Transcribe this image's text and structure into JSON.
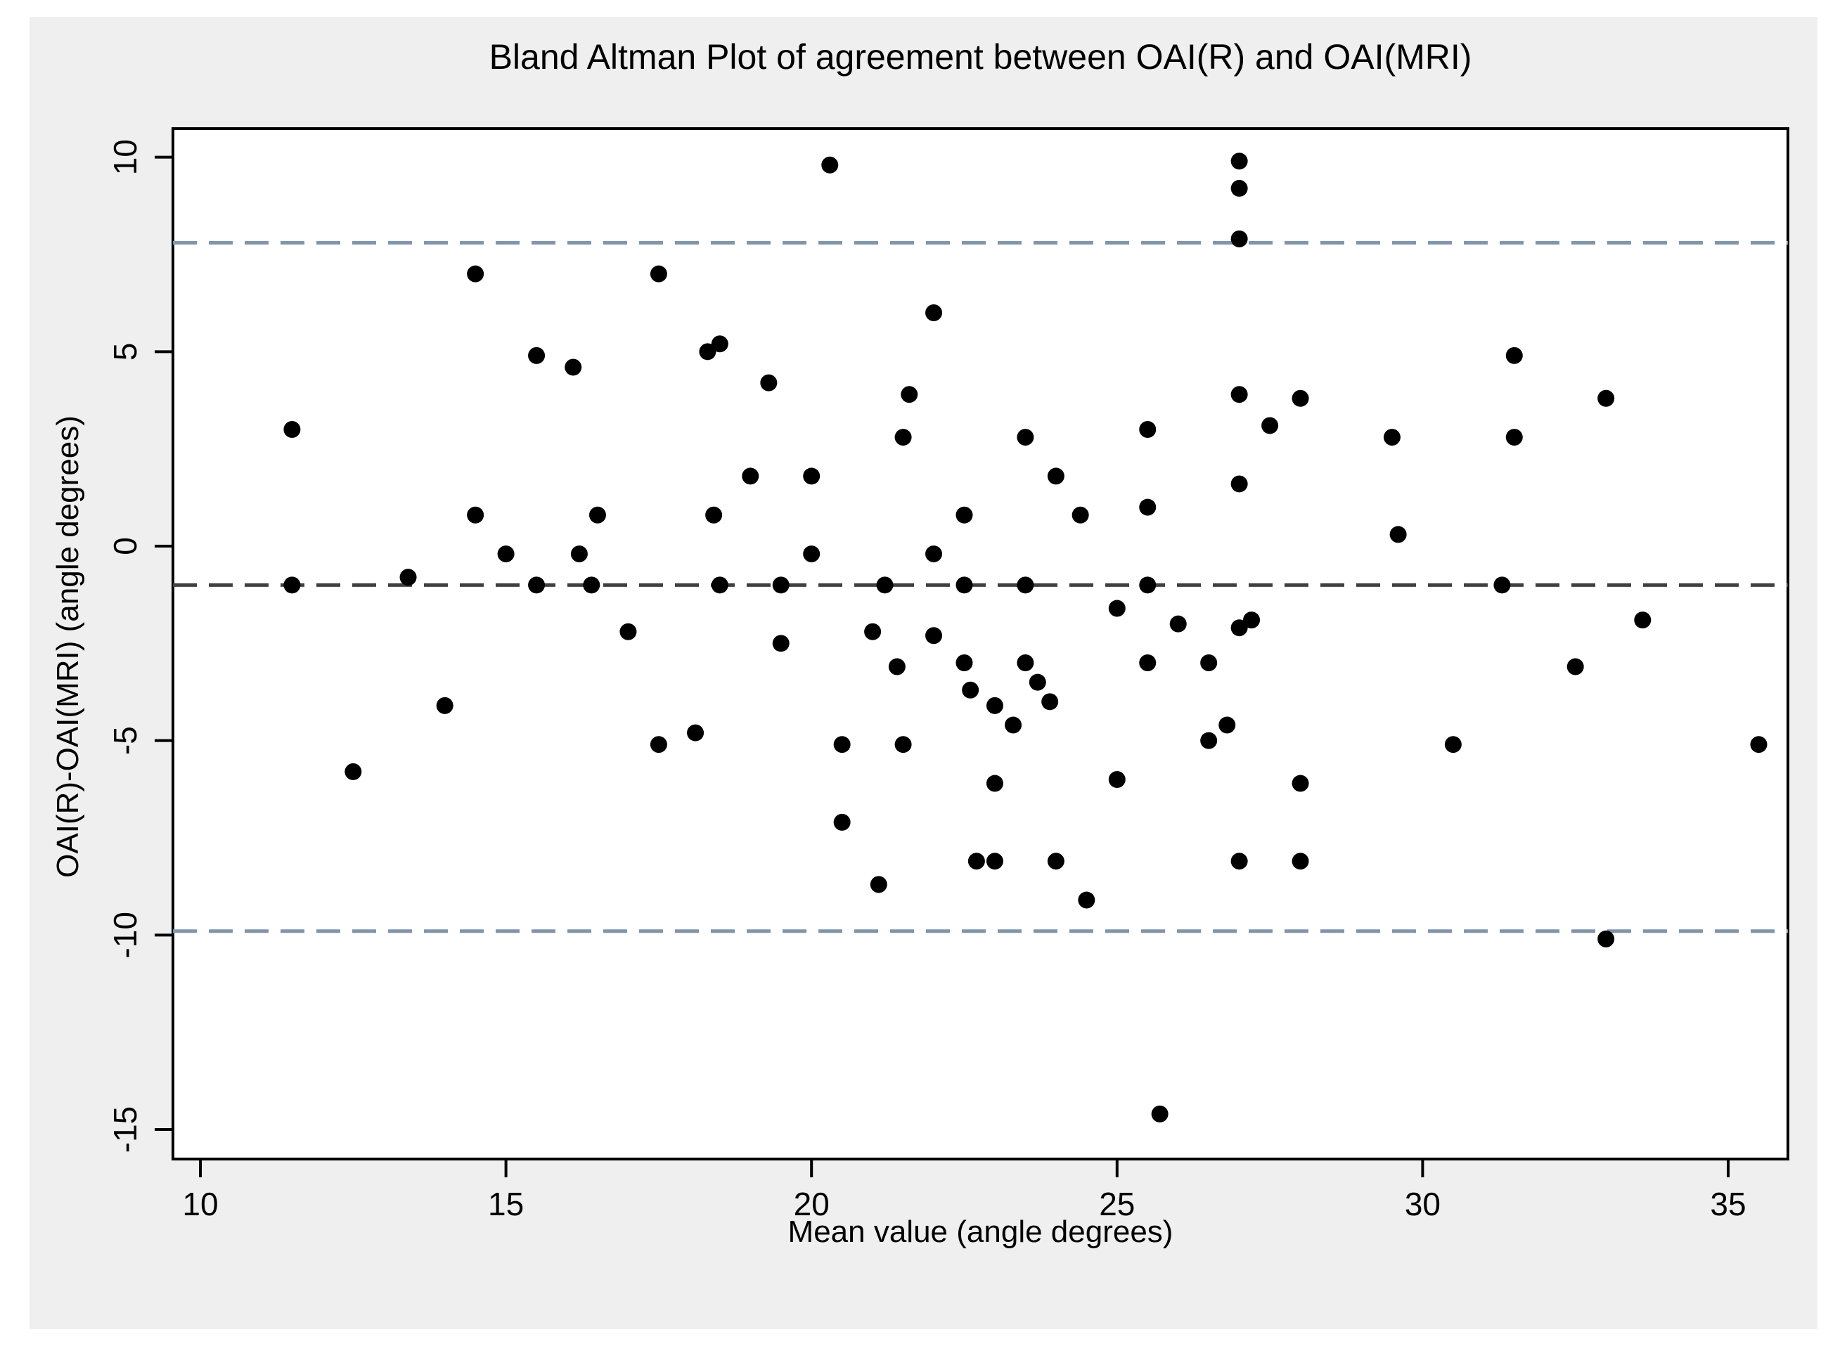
{
  "figure": {
    "title": "Bland Altman Plot of agreement between OAI(R) and OAI(MRI)"
  },
  "chart_data": {
    "type": "scatter",
    "title": "Bland Altman Plot of agreement between OAI(R) and OAI(MRI)",
    "xlabel": "Mean value (angle degrees)",
    "ylabel": "OAI(R)-OAI(MRI) (angle degrees)",
    "xlim": [
      9.5,
      36.0
    ],
    "ylim": [
      -15.8,
      10.7
    ],
    "x_ticks": [
      10,
      15,
      20,
      25,
      30,
      35
    ],
    "y_ticks": [
      10,
      5,
      0,
      -5,
      -10,
      -15
    ],
    "grid": false,
    "legend": "none",
    "point_color": "#000000",
    "figure_background": "#efefef",
    "plot_background": "#ffffff",
    "frame_color": "#000000",
    "reference_lines": [
      {
        "name": "mean_difference",
        "value": -1.0,
        "color": "#404040",
        "style": "dashed"
      },
      {
        "name": "upper_limit_of_agreement",
        "value": 7.8,
        "color": "#8095aa",
        "style": "dashed"
      },
      {
        "name": "lower_limit_of_agreement",
        "value": -9.9,
        "color": "#8095aa",
        "style": "dashed"
      }
    ],
    "points": [
      [
        14.5,
        7.0
      ],
      [
        17.5,
        7.0
      ],
      [
        15.5,
        4.9
      ],
      [
        16.1,
        4.6
      ],
      [
        11.5,
        3.0
      ],
      [
        14.5,
        0.8
      ],
      [
        16.5,
        0.8
      ],
      [
        15.0,
        -0.2
      ],
      [
        16.2,
        -0.2
      ],
      [
        11.5,
        -1.0
      ],
      [
        13.4,
        -0.8
      ],
      [
        15.5,
        -1.0
      ],
      [
        16.4,
        -1.0
      ],
      [
        17.0,
        -2.2
      ],
      [
        18.3,
        5.0
      ],
      [
        18.5,
        5.2
      ],
      [
        19.3,
        4.2
      ],
      [
        20.3,
        9.8
      ],
      [
        27.0,
        9.9
      ],
      [
        27.0,
        9.2
      ],
      [
        27.0,
        7.9
      ],
      [
        22.0,
        6.0
      ],
      [
        21.6,
        3.9
      ],
      [
        21.5,
        2.8
      ],
      [
        23.5,
        2.8
      ],
      [
        25.5,
        3.0
      ],
      [
        19.0,
        1.8
      ],
      [
        20.0,
        1.8
      ],
      [
        24.0,
        1.8
      ],
      [
        24.4,
        0.8
      ],
      [
        18.4,
        0.8
      ],
      [
        22.5,
        0.8
      ],
      [
        25.5,
        1.0
      ],
      [
        27.0,
        1.6
      ],
      [
        20.0,
        -0.2
      ],
      [
        22.0,
        -0.2
      ],
      [
        18.5,
        -1.0
      ],
      [
        19.5,
        -1.0
      ],
      [
        21.2,
        -1.0
      ],
      [
        22.5,
        -1.0
      ],
      [
        23.5,
        -1.0
      ],
      [
        25.5,
        -1.0
      ],
      [
        25.0,
        -1.6
      ],
      [
        21.0,
        -2.2
      ],
      [
        22.0,
        -2.3
      ],
      [
        26.0,
        -2.0
      ],
      [
        27.0,
        -2.1
      ],
      [
        27.2,
        -1.9
      ],
      [
        25.5,
        -3.0
      ],
      [
        26.5,
        -3.0
      ],
      [
        27.5,
        3.1
      ],
      [
        31.5,
        4.9
      ],
      [
        28.0,
        3.8
      ],
      [
        29.5,
        2.8
      ],
      [
        31.5,
        2.8
      ],
      [
        33.0,
        3.8
      ],
      [
        29.6,
        0.3
      ],
      [
        31.3,
        -1.0
      ],
      [
        33.6,
        -1.9
      ],
      [
        27.0,
        3.9
      ],
      [
        14.0,
        -4.1
      ],
      [
        12.5,
        -5.8
      ],
      [
        17.5,
        -5.1
      ],
      [
        18.1,
        -4.8
      ],
      [
        19.5,
        -2.5
      ],
      [
        21.4,
        -3.1
      ],
      [
        22.5,
        -3.0
      ],
      [
        23.5,
        -3.0
      ],
      [
        23.7,
        -3.5
      ],
      [
        22.6,
        -3.7
      ],
      [
        23.0,
        -4.1
      ],
      [
        23.3,
        -4.6
      ],
      [
        23.9,
        -4.0
      ],
      [
        20.5,
        -5.1
      ],
      [
        21.5,
        -5.1
      ],
      [
        23.0,
        -6.1
      ],
      [
        25.0,
        -6.0
      ],
      [
        20.5,
        -7.1
      ],
      [
        22.7,
        -8.1
      ],
      [
        23.0,
        -8.1
      ],
      [
        24.0,
        -8.1
      ],
      [
        21.1,
        -8.7
      ],
      [
        24.5,
        -9.1
      ],
      [
        25.7,
        -14.6
      ],
      [
        26.5,
        -5.0
      ],
      [
        26.8,
        -4.6
      ],
      [
        32.5,
        -3.1
      ],
      [
        30.5,
        -5.1
      ],
      [
        35.5,
        -5.1
      ],
      [
        28.0,
        -6.1
      ],
      [
        28.0,
        -8.1
      ],
      [
        33.0,
        -10.1
      ],
      [
        27.0,
        -8.1
      ]
    ]
  }
}
